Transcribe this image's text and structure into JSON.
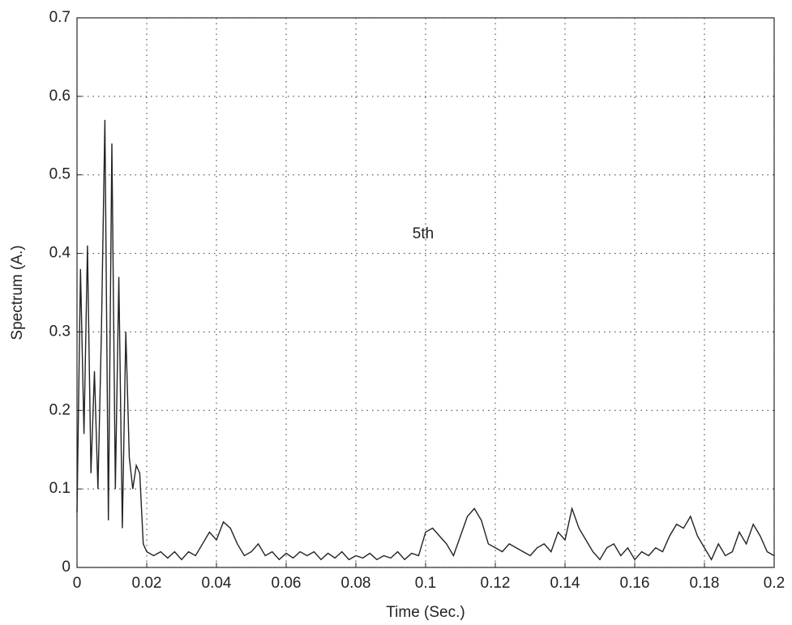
{
  "chart_data": {
    "type": "line",
    "annotation": "5th",
    "xlabel": "Time (Sec.)",
    "ylabel": "Spectrum (A.)",
    "x": [
      0,
      0.001,
      0.002,
      0.003,
      0.004,
      0.005,
      0.006,
      0.007,
      0.008,
      0.009,
      0.01,
      0.011,
      0.012,
      0.013,
      0.014,
      0.015,
      0.016,
      0.017,
      0.018,
      0.019,
      0.02,
      0.022,
      0.024,
      0.026,
      0.028,
      0.03,
      0.032,
      0.034,
      0.036,
      0.038,
      0.04,
      0.042,
      0.044,
      0.046,
      0.048,
      0.05,
      0.052,
      0.054,
      0.056,
      0.058,
      0.06,
      0.062,
      0.064,
      0.066,
      0.068,
      0.07,
      0.072,
      0.074,
      0.076,
      0.078,
      0.08,
      0.082,
      0.084,
      0.086,
      0.088,
      0.09,
      0.092,
      0.094,
      0.096,
      0.098,
      0.1,
      0.102,
      0.104,
      0.106,
      0.108,
      0.11,
      0.112,
      0.114,
      0.116,
      0.118,
      0.12,
      0.122,
      0.124,
      0.126,
      0.128,
      0.13,
      0.132,
      0.134,
      0.136,
      0.138,
      0.14,
      0.142,
      0.144,
      0.146,
      0.148,
      0.15,
      0.152,
      0.154,
      0.156,
      0.158,
      0.16,
      0.162,
      0.164,
      0.166,
      0.168,
      0.17,
      0.172,
      0.174,
      0.176,
      0.178,
      0.18,
      0.182,
      0.184,
      0.186,
      0.188,
      0.19,
      0.192,
      0.194,
      0.196,
      0.198,
      0.2
    ],
    "series": [
      {
        "color": "#222222",
        "values": [
          0.07,
          0.38,
          0.17,
          0.41,
          0.12,
          0.25,
          0.1,
          0.3,
          0.57,
          0.06,
          0.54,
          0.1,
          0.37,
          0.05,
          0.3,
          0.14,
          0.1,
          0.13,
          0.12,
          0.03,
          0.02,
          0.015,
          0.02,
          0.012,
          0.02,
          0.01,
          0.02,
          0.015,
          0.03,
          0.045,
          0.035,
          0.058,
          0.05,
          0.03,
          0.015,
          0.02,
          0.03,
          0.015,
          0.02,
          0.01,
          0.018,
          0.012,
          0.02,
          0.015,
          0.02,
          0.01,
          0.018,
          0.012,
          0.02,
          0.01,
          0.015,
          0.012,
          0.018,
          0.01,
          0.015,
          0.012,
          0.02,
          0.01,
          0.018,
          0.015,
          0.045,
          0.05,
          0.04,
          0.03,
          0.015,
          0.04,
          0.065,
          0.075,
          0.06,
          0.03,
          0.025,
          0.02,
          0.03,
          0.025,
          0.02,
          0.015,
          0.025,
          0.03,
          0.02,
          0.045,
          0.035,
          0.075,
          0.05,
          0.035,
          0.02,
          0.01,
          0.025,
          0.03,
          0.015,
          0.025,
          0.01,
          0.02,
          0.015,
          0.025,
          0.02,
          0.04,
          0.055,
          0.05,
          0.065,
          0.04,
          0.025,
          0.01,
          0.03,
          0.015,
          0.02,
          0.045,
          0.03,
          0.055,
          0.04,
          0.02,
          0.015
        ]
      }
    ],
    "xlim": [
      0,
      0.2
    ],
    "xticks": [
      0,
      0.02,
      0.04,
      0.06,
      0.08,
      0.1,
      0.12,
      0.14,
      0.16,
      0.18,
      0.2
    ],
    "ylim": [
      0,
      0.7
    ],
    "yticks": [
      0,
      0.1,
      0.2,
      0.3,
      0.4,
      0.5,
      0.6,
      0.7
    ],
    "grid": true
  }
}
